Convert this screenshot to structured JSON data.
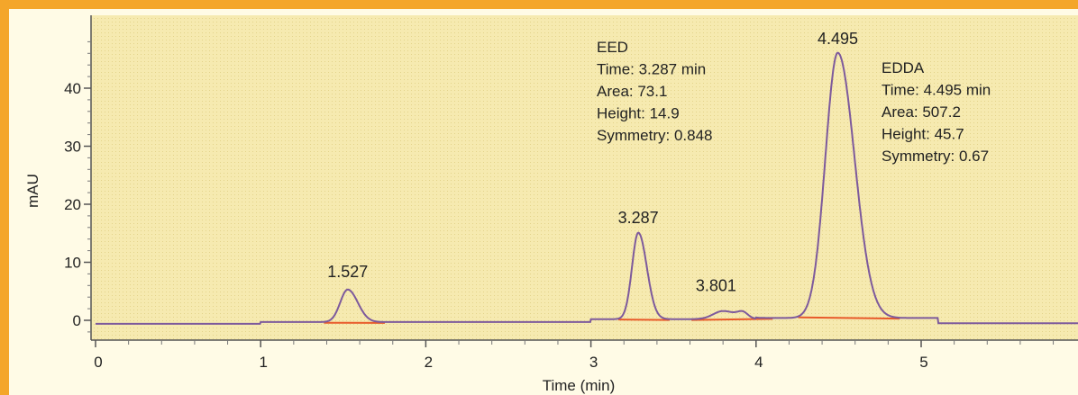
{
  "chart_data": {
    "type": "line",
    "xlabel": "Time (min)",
    "ylabel": "mAU",
    "xlim": [
      0,
      6
    ],
    "ylim": [
      -2,
      50
    ],
    "x_ticks": [
      "0",
      "1",
      "2",
      "3",
      "4",
      "5"
    ],
    "y_ticks": [
      "0",
      "10",
      "20",
      "30",
      "40"
    ],
    "grid": false,
    "colors": {
      "signal": "#7d5a9c",
      "baseline": "#e85a2a",
      "plot_bg": "#f6eab0",
      "border": "#f4a62a"
    },
    "peaks": [
      {
        "label": "1.527",
        "time": 1.527,
        "height": 5.6,
        "width": 0.045
      },
      {
        "label": "3.287",
        "time": 3.287,
        "height": 14.9,
        "width": 0.038
      },
      {
        "label": "3.801",
        "time": 3.801,
        "height": 1.4,
        "width": 0.06
      },
      {
        "label": "4.495",
        "time": 4.495,
        "height": 45.7,
        "width": 0.075
      }
    ],
    "annotations": [
      {
        "lines": [
          "EED",
          "Time: 3.287 min",
          "Area: 73.1",
          "Height: 14.9",
          "Symmetry: 0.848"
        ]
      },
      {
        "lines": [
          "EDDA",
          "Time: 4.495 min",
          "Area: 507.2",
          "Height: 45.7",
          "Symmetry: 0.67"
        ]
      }
    ]
  }
}
